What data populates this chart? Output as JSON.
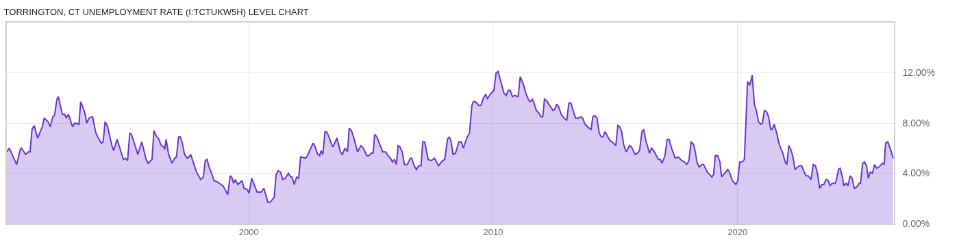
{
  "chart_data": {
    "type": "area",
    "title": "TORRINGTON, CT UNEMPLOYMENT RATE (I:TCTUKW5H) LEVEL CHART",
    "series": [
      {
        "color": "#6a35d0",
        "x": [
          1990.1,
          1990.2,
          1990.5,
          1990.65,
          1990.7,
          1990.87,
          1990.98,
          1991.05,
          1991.13,
          1991.22,
          1991.36,
          1991.55,
          1991.63,
          1991.79,
          1991.88,
          1991.98,
          1992.05,
          1992.15,
          1992.21,
          1992.37,
          1992.47,
          1992.53,
          1992.62,
          1992.79,
          1992.88,
          1993.05,
          1993.12,
          1993.28,
          1993.37,
          1993.47,
          1993.61,
          1993.73,
          1993.82,
          1993.96,
          1994.04,
          1994.12,
          1994.21,
          1994.4,
          1994.47,
          1994.61,
          1994.87,
          1994.96,
          1995.04,
          1995.13,
          1995.2,
          1995.46,
          1995.62,
          1995.8,
          1995.88,
          1996.04,
          1996.12,
          1996.23,
          1996.3,
          1996.42,
          1996.52,
          1996.56,
          1996.62,
          1996.72,
          1996.86,
          1996.97,
          1997.04,
          1997.13,
          1997.2,
          1997.28,
          1997.37,
          1997.48,
          1997.56,
          1997.62,
          1997.86,
          1998.03,
          1998.14,
          1998.22,
          1998.29,
          1998.39,
          1998.46,
          1998.58,
          1998.73,
          1998.86,
          1998.95,
          1999.14,
          1999.24,
          1999.3,
          1999.38,
          1999.45,
          1999.55,
          1999.72,
          1999.81,
          1999.94,
          2000.01,
          2000.12,
          2000.34,
          2000.5,
          2000.62,
          2000.78,
          2000.88,
          2001.04,
          2001.12,
          2001.2,
          2001.3,
          2001.39,
          2001.5,
          2001.62,
          2001.72,
          2001.77,
          2001.86,
          2001.96,
          2002.04,
          2002.12,
          2002.33,
          2002.4,
          2002.63,
          2002.7,
          2002.82,
          2002.9,
          2002.96,
          2003.03,
          2003.12,
          2003.18,
          2003.26,
          2003.39,
          2003.44,
          2003.61,
          2003.75,
          2003.83,
          2003.94,
          2004.04,
          2004.11,
          2004.2,
          2004.3,
          2004.45,
          2004.59,
          2004.69,
          2004.83,
          2004.92,
          2005.01,
          2005.09,
          2005.15,
          2005.24,
          2005.36,
          2005.48,
          2005.6,
          2005.7,
          2005.79,
          2005.88,
          2005.96,
          2006.04,
          2006.11,
          2006.19,
          2006.28,
          2006.37,
          2006.49,
          2006.61,
          2006.67,
          2006.77,
          2006.86,
          2006.95,
          2007.05,
          2007.12,
          2007.2,
          2007.26,
          2007.34,
          2007.46,
          2007.6,
          2007.77,
          2007.93,
          2008.02,
          2008.13,
          2008.2,
          2008.27,
          2008.36,
          2008.46,
          2008.6,
          2008.7,
          2008.78,
          2008.92,
          2009.03,
          2009.13,
          2009.19,
          2009.27,
          2009.41,
          2009.5,
          2009.6,
          2009.7,
          2009.76,
          2009.88,
          2010.03,
          2010.12,
          2010.2,
          2010.3,
          2010.44,
          2010.53,
          2010.62,
          2010.7,
          2010.79,
          2010.88,
          2011.02,
          2011.11,
          2011.25,
          2011.35,
          2011.46,
          2011.52,
          2011.6,
          2011.67,
          2011.77,
          2011.87,
          2011.96,
          2012.03,
          2012.1,
          2012.18,
          2012.31,
          2012.45,
          2012.52,
          2012.6,
          2012.68,
          2012.78,
          2012.9,
          2013.01,
          2013.1,
          2013.18,
          2013.24,
          2013.37,
          2013.49,
          2013.59,
          2013.66,
          2013.76,
          2013.92,
          2014.01,
          2014.08,
          2014.16,
          2014.25,
          2014.34,
          2014.43,
          2014.5,
          2014.57,
          2014.64,
          2014.78,
          2014.87,
          2015.02,
          2015.1,
          2015.18,
          2015.26,
          2015.34,
          2015.44,
          2015.58,
          2015.66,
          2015.81,
          2015.9,
          2015.99,
          2016.09,
          2016.16,
          2016.25,
          2016.4,
          2016.48,
          2016.57,
          2016.76,
          2016.84,
          2016.91,
          2017.03,
          2017.12,
          2017.2,
          2017.3,
          2017.45,
          2017.57,
          2017.73,
          2017.83,
          2017.92,
          2018.01,
          2018.1,
          2018.2,
          2018.26,
          2018.35,
          2018.43,
          2018.55,
          2018.61,
          2018.76,
          2018.86,
          2018.95,
          2019.02,
          2019.09,
          2019.19,
          2019.28,
          2019.35,
          2019.47,
          2019.6,
          2019.67,
          2019.79,
          2019.93,
          2020.01,
          2020.09,
          2020.19,
          2020.28,
          2020.41,
          2020.5,
          2020.6,
          2020.69,
          2020.77,
          2020.86,
          2020.95,
          2021.02,
          2021.1,
          2021.19,
          2021.27,
          2021.36,
          2021.42,
          2021.5,
          2021.59,
          2021.68,
          2021.78,
          2021.84,
          2021.95,
          2022.02,
          2022.1,
          2022.18,
          2022.27,
          2022.35,
          2022.46,
          2022.55,
          2022.62,
          2022.8,
          2022.89,
          2023.01,
          2023.1,
          2023.19,
          2023.27,
          2023.36,
          2023.45,
          2023.53,
          2023.62,
          2023.72,
          2023.78,
          2023.87,
          2024.0,
          2024.05,
          2024.13,
          2024.2,
          2024.29,
          2024.35,
          2024.45,
          2024.52,
          2024.61,
          2024.69,
          2024.78,
          2024.87,
          2024.98,
          2025.03,
          2025.12,
          2025.2,
          2025.28,
          2025.35,
          2025.43,
          2025.52,
          2025.61,
          2025.7,
          2025.79,
          2025.93,
          2026.0,
          2026.06,
          2026.15,
          2026.26,
          2026.37
        ],
        "values": [
          5.7,
          6.0,
          4.7,
          5.9,
          6.0,
          5.5,
          5.7,
          5.7,
          7.5,
          7.8,
          6.8,
          7.7,
          8.4,
          8.1,
          7.7,
          8.5,
          8.6,
          9.9,
          10.1,
          8.7,
          8.7,
          8.4,
          8.7,
          7.7,
          8.0,
          7.9,
          9.7,
          8.9,
          8.0,
          8.4,
          8.5,
          7.3,
          6.9,
          6.4,
          6.5,
          8.1,
          7.8,
          6.2,
          5.8,
          6.7,
          5.1,
          5.2,
          5.0,
          7.2,
          7.1,
          5.5,
          6.5,
          5.1,
          4.8,
          5.1,
          7.4,
          6.9,
          6.8,
          6.2,
          6.1,
          5.9,
          6.7,
          5.5,
          4.8,
          5.2,
          5.3,
          6.9,
          6.9,
          6.4,
          5.5,
          5.2,
          5.3,
          5.5,
          4.1,
          3.5,
          3.7,
          5.0,
          5.1,
          4.4,
          4.1,
          3.4,
          3.3,
          3.1,
          3.0,
          2.3,
          3.8,
          3.7,
          3.2,
          3.5,
          3.1,
          3.4,
          2.8,
          2.7,
          2.4,
          3.6,
          2.5,
          2.5,
          2.8,
          1.7,
          1.7,
          2.1,
          3.9,
          4.2,
          4.1,
          3.5,
          3.6,
          4.0,
          3.7,
          3.7,
          3.1,
          3.7,
          3.6,
          5.3,
          5.2,
          5.4,
          6.4,
          6.2,
          5.5,
          5.4,
          5.8,
          5.5,
          7.3,
          7.3,
          7.0,
          6.3,
          6.1,
          6.8,
          5.7,
          5.5,
          6.0,
          5.7,
          7.6,
          7.4,
          6.8,
          5.7,
          6.2,
          6.0,
          5.4,
          5.4,
          5.6,
          5.6,
          7.1,
          6.9,
          6.3,
          5.7,
          5.7,
          5.4,
          5.2,
          4.9,
          5.1,
          4.7,
          6.2,
          6.1,
          5.7,
          4.7,
          4.7,
          5.2,
          5.2,
          4.6,
          4.3,
          4.6,
          4.6,
          6.5,
          6.5,
          5.9,
          5.1,
          5.0,
          5.2,
          4.6,
          5.0,
          5.1,
          6.7,
          6.9,
          6.6,
          5.5,
          5.6,
          6.5,
          6.5,
          6.0,
          6.8,
          7.2,
          9.4,
          9.7,
          9.7,
          9.4,
          9.4,
          10.0,
          10.3,
          9.9,
          10.3,
          10.6,
          12.0,
          12.1,
          11.4,
          10.4,
          10.2,
          10.6,
          10.6,
          10.1,
          10.2,
          10.1,
          11.7,
          11.0,
          10.3,
          9.8,
          9.7,
          9.9,
          9.6,
          9.0,
          8.8,
          8.5,
          8.5,
          9.9,
          9.8,
          9.4,
          9.0,
          9.1,
          9.5,
          9.3,
          8.7,
          8.4,
          8.2,
          9.6,
          9.6,
          9.2,
          8.4,
          8.4,
          8.5,
          8.4,
          7.9,
          7.6,
          7.5,
          8.5,
          8.6,
          8.4,
          7.2,
          6.9,
          6.9,
          7.3,
          7.1,
          6.6,
          6.5,
          6.2,
          7.8,
          7.7,
          7.3,
          6.3,
          5.7,
          6.2,
          6.1,
          5.5,
          5.6,
          5.8,
          7.3,
          7.5,
          6.6,
          5.6,
          6.0,
          5.8,
          5.1,
          5.1,
          4.8,
          5.4,
          6.7,
          6.7,
          6.0,
          5.2,
          5.3,
          5.0,
          4.9,
          4.7,
          5.0,
          6.5,
          6.3,
          5.8,
          4.8,
          4.5,
          4.7,
          4.7,
          4.1,
          3.9,
          3.7,
          3.9,
          5.4,
          5.4,
          4.9,
          3.7,
          4.0,
          4.3,
          4.1,
          3.4,
          3.1,
          3.4,
          4.9,
          4.9,
          5.1,
          11.3,
          11.0,
          11.8,
          9.5,
          9.0,
          8.1,
          7.9,
          8.0,
          9.0,
          8.9,
          8.5,
          7.5,
          7.5,
          7.9,
          7.3,
          6.5,
          5.9,
          5.7,
          4.9,
          4.7,
          6.2,
          5.9,
          5.3,
          4.3,
          4.5,
          4.6,
          4.6,
          3.8,
          3.8,
          3.5,
          4.7,
          4.6,
          4.0,
          2.8,
          3.1,
          3.1,
          3.5,
          3.4,
          3.0,
          3.2,
          3.2,
          3.5,
          4.3,
          4.4,
          3.7,
          3.0,
          3.2,
          3.0,
          3.8,
          3.6,
          2.8,
          2.9,
          3.2,
          3.2,
          4.8,
          4.9,
          4.6,
          3.6,
          4.1,
          4.0,
          4.7,
          4.4,
          4.5,
          4.8,
          4.7,
          6.4,
          6.5,
          5.9,
          5.2
        ]
      }
    ],
    "xlim": [
      1990.1,
      2026.4
    ],
    "xticks": [
      2000,
      2010,
      2020
    ],
    "ylim": [
      0,
      16
    ],
    "yticks": [
      {
        "value": 0,
        "label": "0.00%"
      },
      {
        "value": 4,
        "label": "4.00%"
      },
      {
        "value": 8,
        "label": "8.00%"
      },
      {
        "value": 12,
        "label": "12.00%"
      }
    ],
    "grid": true,
    "marker": "none",
    "line_style": "solid"
  }
}
